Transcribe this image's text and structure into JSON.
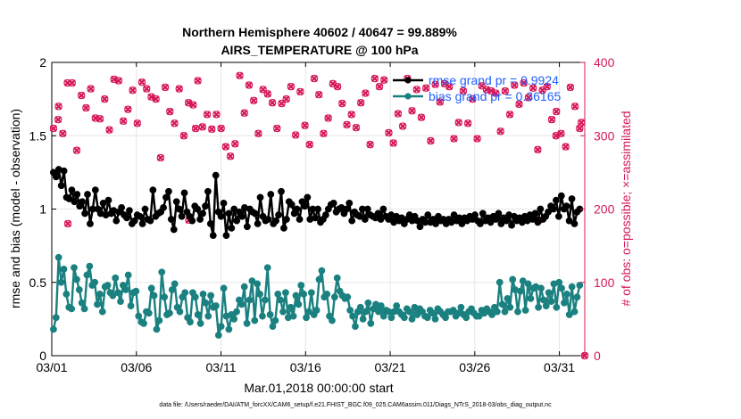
{
  "chart_data": {
    "type": "line",
    "title_line1": "Northern Hemisphere 40602 / 40647 = 99.889%",
    "title_line2": "AIRS_TEMPERATURE @ 100 hPa",
    "xlabel": "Mar.01,2018 00:00:00 start",
    "ylabel_left": "rmse and bias (model - observation)",
    "ylabel_right": "# of obs: o=possible; ×=assimilated",
    "footnote": "data file: /Users/raeder/DAI/ATM_forcXX/CAM6_setup/f.e21.FHIST_BGC.f09_025.CAM6assim.011/Diags_NTrS_2018-03/obs_diag_output.nc",
    "xlim": [
      0,
      31.5
    ],
    "ylim_left": [
      0,
      2
    ],
    "ylim_right": [
      0,
      400
    ],
    "x_ticks": [
      0,
      5,
      10,
      15,
      20,
      25,
      30
    ],
    "x_tick_labels": [
      "03/01",
      "03/06",
      "03/11",
      "03/16",
      "03/21",
      "03/26",
      "03/31"
    ],
    "y_left_ticks": [
      0,
      0.5,
      1,
      1.5,
      2
    ],
    "y_left_tick_labels": [
      "0",
      "0.5",
      "1",
      "1.5",
      "2"
    ],
    "y_right_ticks": [
      0,
      100,
      200,
      300,
      400
    ],
    "y_right_tick_labels": [
      "0",
      "100",
      "200",
      "300",
      "400"
    ],
    "colors": {
      "rmse": "#000000",
      "bias": "#1a8080",
      "obs": "#d6195a",
      "legend_text": "#1f5fff",
      "grid": "#e6e6e6"
    },
    "legend": [
      {
        "key": "rmse",
        "label": "rmse grand pr = 0.9924"
      },
      {
        "key": "bias",
        "label": "bias grand pr = 0.36165"
      }
    ],
    "series": [
      {
        "name": "rmse",
        "values": [
          1.25,
          1.22,
          1.27,
          1.16,
          1.26,
          1.08,
          1.07,
          1.13,
          1.05,
          1.1,
          1.02,
          1.05,
          0.97,
          1.1,
          0.9,
          1.0,
          1.13,
          1.0,
          0.97,
          1.04,
          0.96,
          1.06,
          0.97,
          0.99,
          0.92,
          0.98,
          1.01,
          0.96,
          0.94,
          0.99,
          0.9,
          0.92,
          0.96,
          0.95,
          0.9,
          1.0,
          0.93,
          0.92,
          1.13,
          0.95,
          0.97,
          0.98,
          1.01,
          1.08,
          1.12,
          0.93,
          0.86,
          1.05,
          1.0,
          0.95,
          1.11,
          0.98,
          0.95,
          0.92,
          1.02,
          1.0,
          0.93,
          0.97,
          1.02,
          1.12,
          0.9,
          0.82,
          1.23,
          0.98,
          0.95,
          1.04,
          0.82,
          0.97,
          0.87,
          1.0,
          0.92,
          0.98,
          0.95,
          1.01,
          0.88,
          1.0,
          0.98,
          0.97,
          0.9,
          1.08,
          0.95,
          0.92,
          0.93,
          1.1,
          0.9,
          0.92,
          0.96,
          1.12,
          0.87,
          0.93,
          1.05,
          1.03,
          0.97,
          1.0,
          0.93,
          1.05,
          1.02,
          1.08,
          0.93,
          1.0,
          0.94,
          1.0,
          0.91,
          0.93,
          0.96,
          1.0,
          1.03,
          1.04,
          0.98,
          1.0,
          1.01,
          0.97,
          1.0,
          1.04,
          0.92,
          0.98,
          0.96,
          0.95,
          1.0,
          0.93,
          1.0,
          0.96,
          0.95,
          0.94,
          0.97,
          0.93,
          1.0,
          0.95,
          0.93,
          0.96,
          0.91,
          0.95,
          0.92,
          0.94,
          0.9,
          0.93,
          0.96,
          0.92,
          0.95,
          0.92,
          0.88,
          0.93,
          0.91,
          0.96,
          0.91,
          0.93,
          0.9,
          0.95,
          0.92,
          0.93,
          0.9,
          0.93,
          0.91,
          0.96,
          0.92,
          0.94,
          0.9,
          0.94,
          0.92,
          0.95,
          0.93,
          0.96,
          0.92,
          0.9,
          0.97,
          0.92,
          0.94,
          0.91,
          0.95,
          0.93,
          0.97,
          0.9,
          0.94,
          0.92,
          0.96,
          0.89,
          0.95,
          0.92,
          0.94,
          0.91,
          0.95,
          0.92,
          0.96,
          0.93,
          0.97,
          0.91,
          1.0,
          0.93,
          0.95,
          0.98,
          1.02,
          1.0,
          1.06,
          0.95,
          1.09,
          1.0,
          1.02,
          0.92,
          1.07,
          0.9,
          0.98,
          1.0
        ]
      },
      {
        "name": "bias",
        "values": [
          0.18,
          0.26,
          0.67,
          0.5,
          0.59,
          0.42,
          0.33,
          0.32,
          0.6,
          0.52,
          0.45,
          0.36,
          0.32,
          0.55,
          0.61,
          0.48,
          0.5,
          0.35,
          0.42,
          0.3,
          0.47,
          0.48,
          0.43,
          0.41,
          0.53,
          0.43,
          0.37,
          0.48,
          0.45,
          0.55,
          0.34,
          0.43,
          0.44,
          0.27,
          0.23,
          0.22,
          0.3,
          0.29,
          0.46,
          0.41,
          0.18,
          0.24,
          0.57,
          0.4,
          0.28,
          0.29,
          0.45,
          0.49,
          0.33,
          0.3,
          0.4,
          0.43,
          0.26,
          0.23,
          0.43,
          0.4,
          0.28,
          0.22,
          0.42,
          0.36,
          0.27,
          0.41,
          0.33,
          0.34,
          0.14,
          0.2,
          0.46,
          0.27,
          0.18,
          0.28,
          0.25,
          0.3,
          0.38,
          0.35,
          0.47,
          0.22,
          0.38,
          0.51,
          0.24,
          0.49,
          0.42,
          0.27,
          0.38,
          0.6,
          0.28,
          0.2,
          0.24,
          0.42,
          0.38,
          0.3,
          0.43,
          0.26,
          0.33,
          0.27,
          0.41,
          0.35,
          0.48,
          0.42,
          0.26,
          0.3,
          0.43,
          0.28,
          0.31,
          0.52,
          0.58,
          0.4,
          0.42,
          0.27,
          0.24,
          0.4,
          0.53,
          0.44,
          0.41,
          0.39,
          0.4,
          0.31,
          0.27,
          0.2,
          0.3,
          0.33,
          0.25,
          0.3,
          0.36,
          0.22,
          0.32,
          0.35,
          0.3,
          0.34,
          0.27,
          0.31,
          0.3,
          0.26,
          0.3,
          0.34,
          0.3,
          0.28,
          0.26,
          0.32,
          0.3,
          0.25,
          0.33,
          0.28,
          0.32,
          0.3,
          0.27,
          0.26,
          0.31,
          0.29,
          0.25,
          0.32,
          0.3,
          0.28,
          0.26,
          0.3,
          0.3,
          0.31,
          0.27,
          0.29,
          0.33,
          0.28,
          0.26,
          0.3,
          0.32,
          0.29,
          0.27,
          0.27,
          0.31,
          0.29,
          0.32,
          0.3,
          0.28,
          0.33,
          0.3,
          0.5,
          0.35,
          0.3,
          0.39,
          0.33,
          0.52,
          0.45,
          0.3,
          0.44,
          0.51,
          0.31,
          0.49,
          0.39,
          0.46,
          0.47,
          0.33,
          0.46,
          0.38,
          0.34,
          0.43,
          0.37,
          0.49,
          0.33,
          0.5,
          0.46,
          0.36,
          0.42,
          0.28,
          0.47,
          0.3,
          0.4,
          0.48
        ]
      }
    ],
    "obs_assimilated_values": [
      310,
      322,
      303,
      372,
      372,
      280,
      355,
      338,
      364,
      324,
      323,
      350,
      308,
      377,
      375,
      320,
      336,
      362,
      317,
      373,
      364,
      353,
      350,
      270,
      366,
      333,
      317,
      364,
      300,
      345,
      342,
      375,
      312,
      329,
      309,
      329,
      310,
      285,
      272,
      289,
      382,
      331,
      369,
      348,
      303,
      363,
      357,
      345,
      310,
      344,
      350,
      367,
      301,
      360,
      314,
      288,
      378,
      356,
      303,
      324,
      371,
      367,
      344,
      315,
      329,
      311,
      345,
      358,
      288,
      378,
      367,
      376,
      304,
      290,
      330,
      313,
      378,
      334,
      363,
      325,
      365,
      293,
      370,
      346,
      371,
      367,
      296,
      318,
      361,
      317,
      350,
      296,
      368,
      363,
      361,
      358,
      306,
      361,
      329,
      369,
      343,
      372,
      352,
      365,
      281,
      362,
      367,
      322,
      333,
      303,
      285,
      366,
      340,
      310
    ],
    "obs_possible_values": [
      310,
      322,
      303,
      372,
      372,
      280,
      355,
      338,
      364,
      324,
      323,
      350,
      308,
      377,
      375,
      320,
      336,
      362,
      317,
      373,
      364,
      353,
      350,
      270,
      366,
      333,
      317,
      364,
      300,
      345,
      342,
      375,
      312,
      329,
      309,
      329,
      310,
      285,
      272,
      289,
      382,
      331,
      369,
      348,
      303,
      363,
      357,
      345,
      310,
      344,
      350,
      367,
      301,
      360,
      314,
      288,
      378,
      356,
      303,
      324,
      371,
      367,
      344,
      315,
      329,
      311,
      345,
      358,
      288,
      378,
      367,
      376,
      304,
      290,
      330,
      313,
      378,
      334,
      363,
      325,
      365,
      293,
      370,
      346,
      371,
      367,
      296,
      318,
      361,
      317,
      350,
      296,
      368,
      363,
      361,
      358,
      306,
      361,
      329,
      369,
      343,
      372,
      352,
      365,
      281,
      362,
      367,
      322,
      333,
      303,
      285,
      366,
      340,
      310
    ],
    "obs_extra_points": [
      {
        "x": 0.4,
        "y": 340
      },
      {
        "x": 0.95,
        "y": 180
      },
      {
        "x": 8.1,
        "y": 185
      },
      {
        "x": 8.5,
        "y": 310
      },
      {
        "x": 28.8,
        "y": 185
      },
      {
        "x": 29.8,
        "y": 300
      },
      {
        "x": 31.3,
        "y": 318
      },
      {
        "x": 31.5,
        "y": 0
      }
    ]
  }
}
